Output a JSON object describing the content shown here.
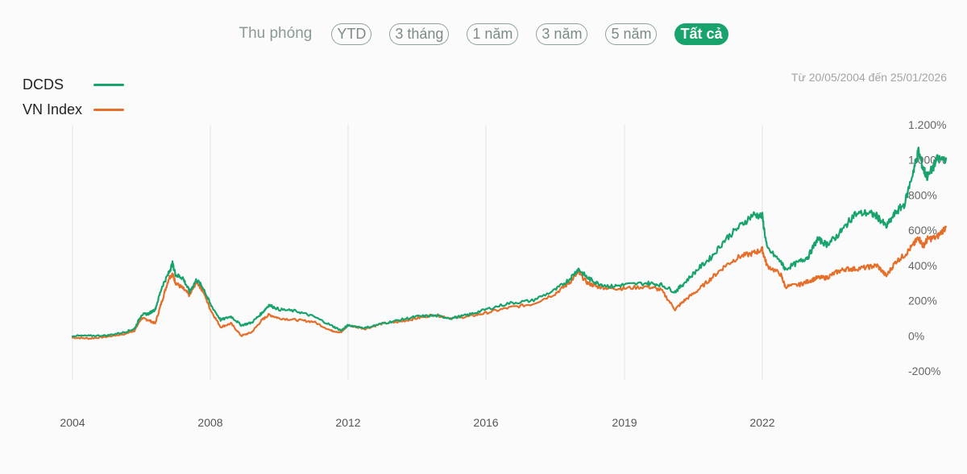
{
  "zoom": {
    "label": "Thu phóng",
    "buttons": [
      {
        "label": "YTD",
        "active": false
      },
      {
        "label": "3 tháng",
        "active": false
      },
      {
        "label": "1 năm",
        "active": false
      },
      {
        "label": "3 năm",
        "active": false
      },
      {
        "label": "5 năm",
        "active": false
      },
      {
        "label": "Tất cả",
        "active": true
      }
    ]
  },
  "date_range": "Từ 20/05/2004 đến 25/01/2026",
  "colors": {
    "dcds": "#17a36b",
    "vnindex": "#e56f2a",
    "grid": "#e3e3e3"
  },
  "chart_data": {
    "type": "line",
    "title": "",
    "xlabel": "",
    "ylabel": "",
    "ylim": [
      -200,
      1200
    ],
    "y_ticks": [
      1200,
      1000,
      800,
      600,
      400,
      200,
      0,
      -200
    ],
    "y_tick_labels": [
      "1.200%",
      "1.000%",
      "800%",
      "600%",
      "400%",
      "200%",
      "0%",
      "-200%"
    ],
    "x_ticks": [
      "2004",
      "2008",
      "2012",
      "2016",
      "2019",
      "2022"
    ],
    "legend": "top-left",
    "grid": "vertical",
    "series": [
      {
        "name": "DCDS",
        "points": [
          [
            "2004",
            0
          ],
          [
            "2004.5",
            0
          ],
          [
            "2005",
            2
          ],
          [
            "2005.5",
            20
          ],
          [
            "2005.8",
            40
          ],
          [
            "2006",
            120
          ],
          [
            "2006.2",
            125
          ],
          [
            "2006.4",
            150
          ],
          [
            "2006.6",
            280
          ],
          [
            "2006.8",
            360
          ],
          [
            "2006.9",
            410
          ],
          [
            "2007.0",
            345
          ],
          [
            "2007.2",
            330
          ],
          [
            "2007.4",
            250
          ],
          [
            "2007.6",
            320
          ],
          [
            "2007.8",
            270
          ],
          [
            "2008.0",
            180
          ],
          [
            "2008.3",
            90
          ],
          [
            "2008.6",
            110
          ],
          [
            "2008.9",
            60
          ],
          [
            "2009.2",
            75
          ],
          [
            "2009.5",
            130
          ],
          [
            "2009.7",
            175
          ],
          [
            "2010",
            150
          ],
          [
            "2010.5",
            140
          ],
          [
            "2011",
            110
          ],
          [
            "2011.5",
            60
          ],
          [
            "2011.8",
            30
          ],
          [
            "2012",
            60
          ],
          [
            "2012.5",
            45
          ],
          [
            "2013",
            70
          ],
          [
            "2013.5",
            90
          ],
          [
            "2014",
            110
          ],
          [
            "2014.5",
            115
          ],
          [
            "2015",
            100
          ],
          [
            "2015.5",
            120
          ],
          [
            "2016",
            150
          ],
          [
            "2016.5",
            185
          ],
          [
            "2017",
            200
          ],
          [
            "2017.5",
            260
          ],
          [
            "2017.8",
            320
          ],
          [
            "2018.0",
            380
          ],
          [
            "2018.2",
            330
          ],
          [
            "2018.4",
            300
          ],
          [
            "2018.7",
            280
          ],
          [
            "2019.0",
            290
          ],
          [
            "2019.5",
            300
          ],
          [
            "2019.8",
            290
          ],
          [
            "2020.1",
            250
          ],
          [
            "2020.3",
            300
          ],
          [
            "2020.6",
            380
          ],
          [
            "2020.9",
            450
          ],
          [
            "2021.2",
            550
          ],
          [
            "2021.5",
            620
          ],
          [
            "2021.8",
            690
          ],
          [
            "2022.0",
            680
          ],
          [
            "2022.1",
            500
          ],
          [
            "2022.4",
            420
          ],
          [
            "2022.5",
            380
          ],
          [
            "2022.8",
            420
          ],
          [
            "2023.0",
            450
          ],
          [
            "2023.2",
            550
          ],
          [
            "2023.4",
            520
          ],
          [
            "2023.6",
            560
          ],
          [
            "2023.8",
            620
          ],
          [
            "2024.0",
            690
          ],
          [
            "2024.3",
            700
          ],
          [
            "2024.5",
            680
          ],
          [
            "2024.7",
            620
          ],
          [
            "2024.9",
            700
          ],
          [
            "2025.1",
            750
          ],
          [
            "2025.3",
            950
          ],
          [
            "2025.4",
            1050
          ],
          [
            "2025.5",
            950
          ],
          [
            "2025.6",
            900
          ],
          [
            "2025.8",
            1000
          ],
          [
            "2026.0",
            1010
          ]
        ]
      },
      {
        "name": "VN Index",
        "points": [
          [
            "2004",
            -10
          ],
          [
            "2004.5",
            -15
          ],
          [
            "2005",
            -5
          ],
          [
            "2005.5",
            10
          ],
          [
            "2005.8",
            30
          ],
          [
            "2006",
            100
          ],
          [
            "2006.2",
            90
          ],
          [
            "2006.4",
            70
          ],
          [
            "2006.6",
            200
          ],
          [
            "2006.8",
            330
          ],
          [
            "2006.9",
            350
          ],
          [
            "2007.0",
            300
          ],
          [
            "2007.2",
            270
          ],
          [
            "2007.4",
            230
          ],
          [
            "2007.6",
            310
          ],
          [
            "2007.8",
            250
          ],
          [
            "2008.0",
            150
          ],
          [
            "2008.3",
            50
          ],
          [
            "2008.6",
            70
          ],
          [
            "2008.9",
            0
          ],
          [
            "2009.2",
            20
          ],
          [
            "2009.5",
            90
          ],
          [
            "2009.7",
            120
          ],
          [
            "2010",
            100
          ],
          [
            "2010.5",
            90
          ],
          [
            "2011",
            80
          ],
          [
            "2011.5",
            30
          ],
          [
            "2011.8",
            20
          ],
          [
            "2012",
            60
          ],
          [
            "2012.5",
            40
          ],
          [
            "2013",
            70
          ],
          [
            "2013.5",
            80
          ],
          [
            "2014",
            100
          ],
          [
            "2014.5",
            120
          ],
          [
            "2015",
            100
          ],
          [
            "2015.5",
            110
          ],
          [
            "2016",
            130
          ],
          [
            "2016.5",
            160
          ],
          [
            "2017",
            180
          ],
          [
            "2017.5",
            240
          ],
          [
            "2017.8",
            300
          ],
          [
            "2018.0",
            360
          ],
          [
            "2018.2",
            300
          ],
          [
            "2018.4",
            280
          ],
          [
            "2018.7",
            270
          ],
          [
            "2019.0",
            270
          ],
          [
            "2019.5",
            280
          ],
          [
            "2019.8",
            260
          ],
          [
            "2020.1",
            150
          ],
          [
            "2020.3",
            200
          ],
          [
            "2020.6",
            260
          ],
          [
            "2020.9",
            330
          ],
          [
            "2021.2",
            400
          ],
          [
            "2021.5",
            450
          ],
          [
            "2021.8",
            470
          ],
          [
            "2022.0",
            490
          ],
          [
            "2022.1",
            400
          ],
          [
            "2022.4",
            350
          ],
          [
            "2022.5",
            280
          ],
          [
            "2022.8",
            290
          ],
          [
            "2023.0",
            310
          ],
          [
            "2023.2",
            330
          ],
          [
            "2023.4",
            330
          ],
          [
            "2023.6",
            360
          ],
          [
            "2023.8",
            380
          ],
          [
            "2024.0",
            380
          ],
          [
            "2024.3",
            390
          ],
          [
            "2024.5",
            400
          ],
          [
            "2024.7",
            340
          ],
          [
            "2024.9",
            420
          ],
          [
            "2025.1",
            460
          ],
          [
            "2025.3",
            520
          ],
          [
            "2025.4",
            560
          ],
          [
            "2025.5",
            510
          ],
          [
            "2025.6",
            550
          ],
          [
            "2025.8",
            560
          ],
          [
            "2026.0",
            620
          ]
        ]
      }
    ]
  }
}
